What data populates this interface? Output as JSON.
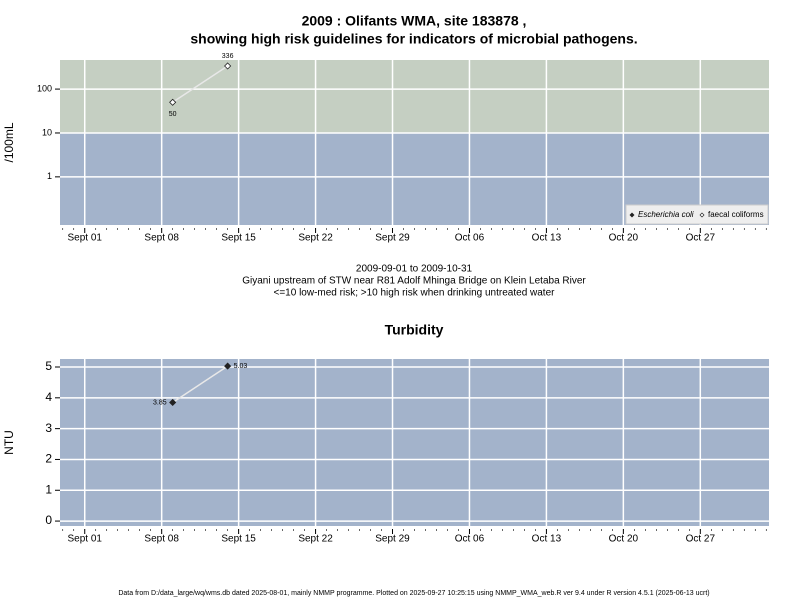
{
  "chart_data": [
    {
      "type": "line",
      "title": "2009 : Olifants WMA, site 183878 ,",
      "subtitle": "showing high risk guidelines for indicators of microbial pathogens.",
      "ylabel": "/100mL",
      "log_y": true,
      "threshold": 10,
      "colors": {
        "below": "#a3b3cb",
        "above": "#c5cfc2"
      },
      "grid": true,
      "legend": "bottom-right",
      "x": [
        "2009-09-09",
        "2009-09-14"
      ],
      "series": [
        {
          "name": "Escherichia coli",
          "marker": "filled",
          "italic": true,
          "color": "#222222",
          "values": [
            null,
            null
          ]
        },
        {
          "name": "faecal coliforms",
          "marker": "open",
          "italic": false,
          "color": "#e8e8e8",
          "values": [
            50,
            336
          ]
        }
      ],
      "xlim": [
        "2009-08-29T18:00",
        "2009-11-02T06:00"
      ],
      "xticks": [
        {
          "value": "2009-09-01",
          "label": "Sept 01"
        },
        {
          "value": "2009-09-08",
          "label": "Sept 08"
        },
        {
          "value": "2009-09-15",
          "label": "Sept 15"
        },
        {
          "value": "2009-09-22",
          "label": "Sept 22"
        },
        {
          "value": "2009-09-29",
          "label": "Sept 29"
        },
        {
          "value": "2009-10-06",
          "label": "Oct 06"
        },
        {
          "value": "2009-10-13",
          "label": "Oct 13"
        },
        {
          "value": "2009-10-20",
          "label": "Oct 20"
        },
        {
          "value": "2009-10-27",
          "label": "Oct 27"
        }
      ],
      "ylim": [
        0.08,
        460
      ],
      "yticks": [
        1,
        10,
        100
      ],
      "notes": [
        "2009-09-01 to 2009-10-31",
        "Giyani upstream of STW near R81 Adolf Mhinga Bridge on Klein Letaba River",
        "<=10 low-med risk; >10 high risk when drinking untreated water"
      ]
    },
    {
      "type": "line",
      "title": "Turbidity",
      "ylabel": "NTU",
      "log_y": false,
      "background": "#a3b3cb",
      "grid": true,
      "x": [
        "2009-09-09",
        "2009-09-14"
      ],
      "values": [
        3.85,
        5.03
      ],
      "color": "#e8e8e8",
      "marker": "filled",
      "xlim": [
        "2009-08-29T18:00",
        "2009-11-02T06:00"
      ],
      "xticks": [
        {
          "value": "2009-09-01",
          "label": "Sept 01"
        },
        {
          "value": "2009-09-08",
          "label": "Sept 08"
        },
        {
          "value": "2009-09-15",
          "label": "Sept 15"
        },
        {
          "value": "2009-09-22",
          "label": "Sept 22"
        },
        {
          "value": "2009-09-29",
          "label": "Sept 29"
        },
        {
          "value": "2009-10-06",
          "label": "Oct 06"
        },
        {
          "value": "2009-10-13",
          "label": "Oct 13"
        },
        {
          "value": "2009-10-20",
          "label": "Oct 20"
        },
        {
          "value": "2009-10-27",
          "label": "Oct 27"
        }
      ],
      "ylim": [
        -0.16,
        5.26
      ],
      "yticks": [
        0,
        1,
        2,
        3,
        4,
        5
      ]
    }
  ],
  "footer": "Data from D:/data_large/wq/wms.db dated 2025-08-01, mainly NMMP programme. Plotted on 2025-09-27 10:25:15 using NMMP_WMA_web.R ver 9.4 under R version 4.5.1 (2025-06-13 ucrt)"
}
